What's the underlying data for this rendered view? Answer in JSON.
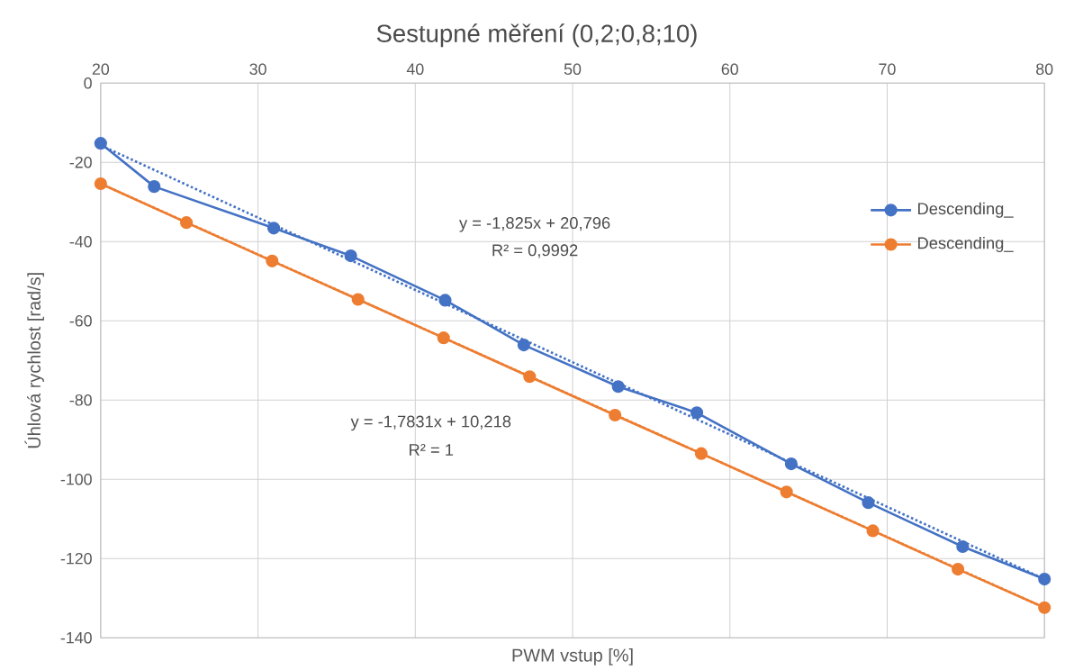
{
  "chart_data": {
    "type": "line",
    "title": "Sestupné měření (0,2;0,8;10)",
    "xlabel": "PWM vstup [%]",
    "ylabel": "Úhlová rychlost [rad/s]",
    "xlim": [
      20,
      80
    ],
    "xticks": [
      20,
      30,
      40,
      50,
      60,
      70,
      80
    ],
    "ylim": [
      -140,
      0
    ],
    "yticks": [
      -140,
      -120,
      -100,
      -80,
      -60,
      -40,
      -20,
      0
    ],
    "grid": true,
    "legend": "right",
    "marker": "circle",
    "series": [
      {
        "name": "Descending_",
        "color": "#4472c4",
        "x": [
          20,
          23.4,
          31,
          35.9,
          41.9,
          46.9,
          52.9,
          57.9,
          63.9,
          68.8,
          74.8,
          80
        ],
        "values": [
          -15.2,
          -26.1,
          -36.6,
          -43.6,
          -54.8,
          -66.1,
          -76.6,
          -83.2,
          -96.1,
          -105.9,
          -117,
          -125.2
        ]
      },
      {
        "name": "Descending_",
        "color": "#ed7d31",
        "x": [
          20,
          25.45,
          30.9,
          36.36,
          41.8,
          47.27,
          52.7,
          58.18,
          63.6,
          69.09,
          74.5,
          80
        ],
        "values": [
          -25.4,
          -35.2,
          -44.9,
          -54.6,
          -64.3,
          -74.1,
          -83.8,
          -93.5,
          -103.2,
          -113,
          -122.7,
          -132.4
        ]
      },
      {
        "type": "line",
        "color": "#4472c4",
        "line_style": "dotted",
        "marker": "none",
        "x": [
          20,
          80
        ],
        "values": [
          -15.7,
          -125.2
        ]
      },
      {
        "type": "line",
        "color": "#ed7d31",
        "line_style": "dotted",
        "marker": "none",
        "x": [
          20,
          80
        ],
        "values": [
          -25.4,
          -132.4
        ]
      }
    ],
    "annotations": [
      "y = -1,825x + 20,796",
      "R² = 0,9992",
      "y = -1,7831x + 10,218",
      "R² = 1"
    ]
  }
}
